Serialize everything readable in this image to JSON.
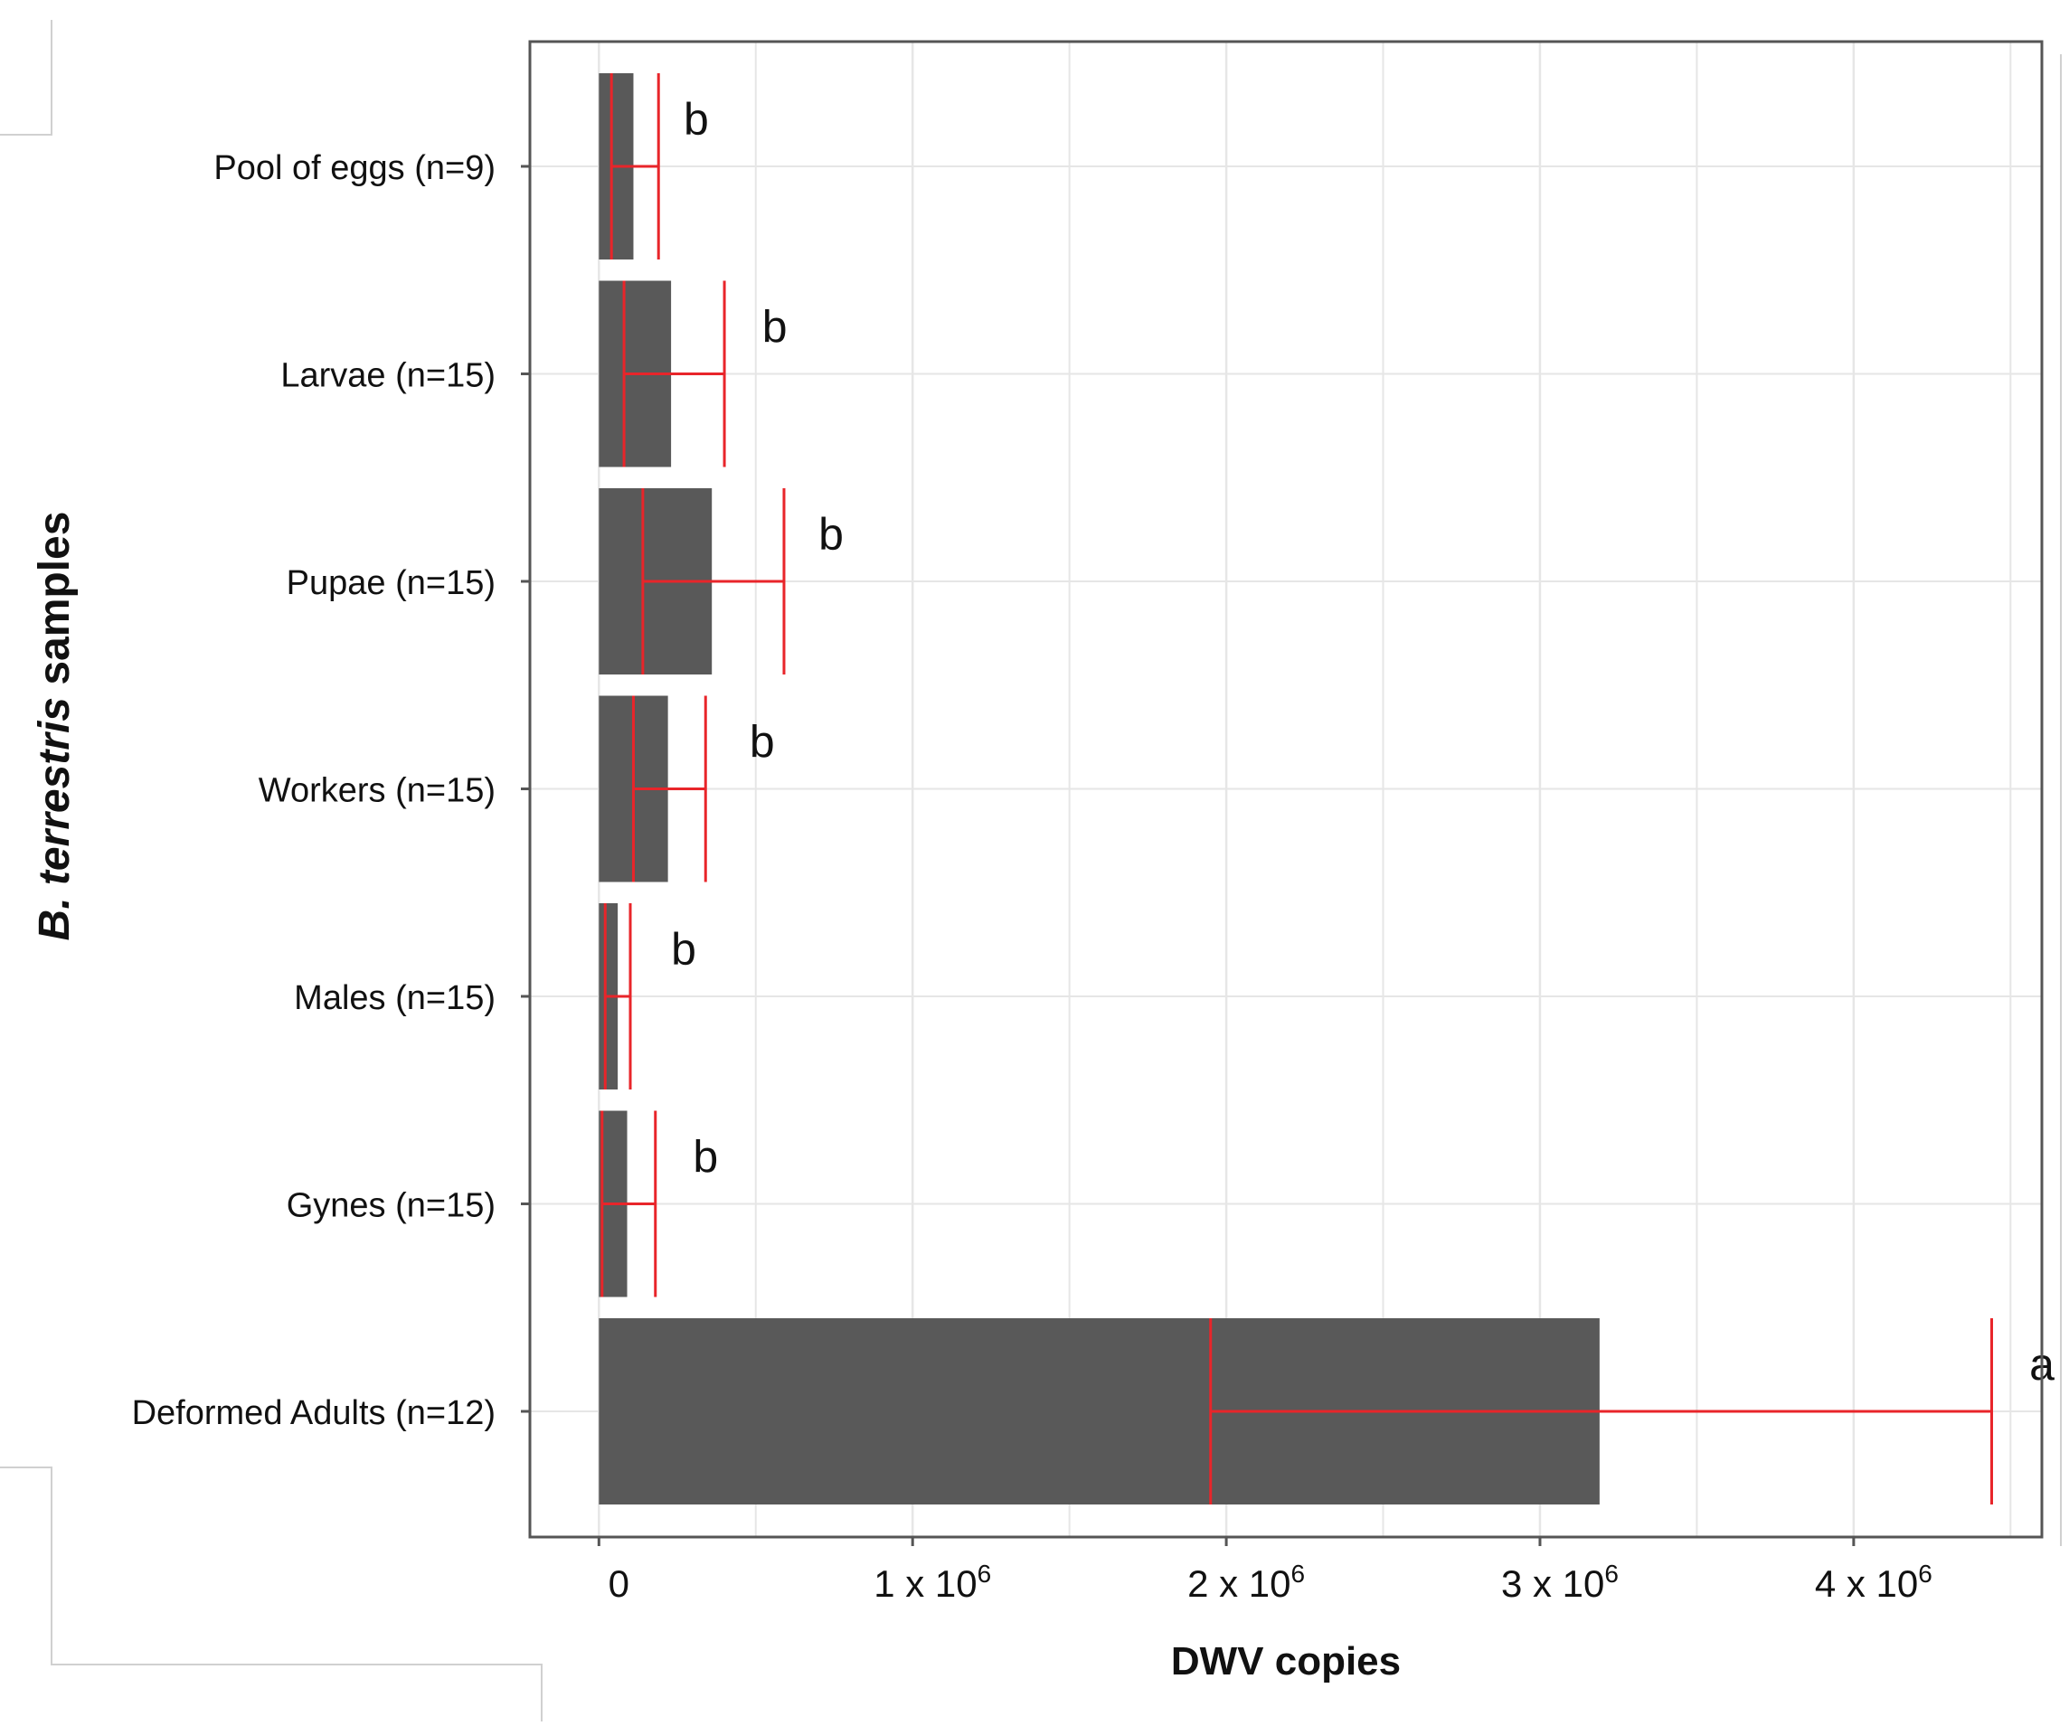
{
  "chart_data": {
    "type": "bar",
    "orientation": "horizontal",
    "title": "",
    "xlabel": "DWV copies",
    "ylabel_italic": "B. terrestris",
    "ylabel_rest": " samples",
    "categories": [
      "Pool of eggs (n=9)",
      "Larvae (n=15)",
      "Pupae (n=15)",
      "Workers (n=15)",
      "Males (n=15)",
      "Gynes (n=15)",
      "Deformed Adults (n=12)"
    ],
    "values": [
      110000,
      230000,
      360000,
      220000,
      60000,
      90000,
      3190000
    ],
    "error_low": [
      40000,
      80000,
      140000,
      110000,
      20000,
      10000,
      1950000
    ],
    "error_high": [
      190000,
      400000,
      590000,
      340000,
      100000,
      180000,
      4440000
    ],
    "significance_letters": [
      "b",
      "b",
      "b",
      "b",
      "b",
      "b",
      "a"
    ],
    "letter_offsets": [
      80000,
      120000,
      110000,
      140000,
      130000,
      120000,
      120000
    ],
    "xlim": [
      -220000,
      4600000
    ],
    "xticks": [
      {
        "value": 0,
        "mantissa": "0",
        "exponent": ""
      },
      {
        "value": 1000000,
        "mantissa": "1 x 10",
        "exponent": "6"
      },
      {
        "value": 2000000,
        "mantissa": "2 x 10",
        "exponent": "6"
      },
      {
        "value": 3000000,
        "mantissa": "3 x 10",
        "exponent": "6"
      },
      {
        "value": 4000000,
        "mantissa": "4 x 10",
        "exponent": "6"
      }
    ],
    "minor_gridlines": [
      500000,
      1500000,
      2500000,
      3500000,
      4500000
    ],
    "grid": true,
    "legend": "none",
    "colors": {
      "bar": "#595959",
      "error_bar": "#e8252a",
      "grid": "#e6e6e6",
      "panel_border": "#555555",
      "text": "#111111"
    }
  }
}
